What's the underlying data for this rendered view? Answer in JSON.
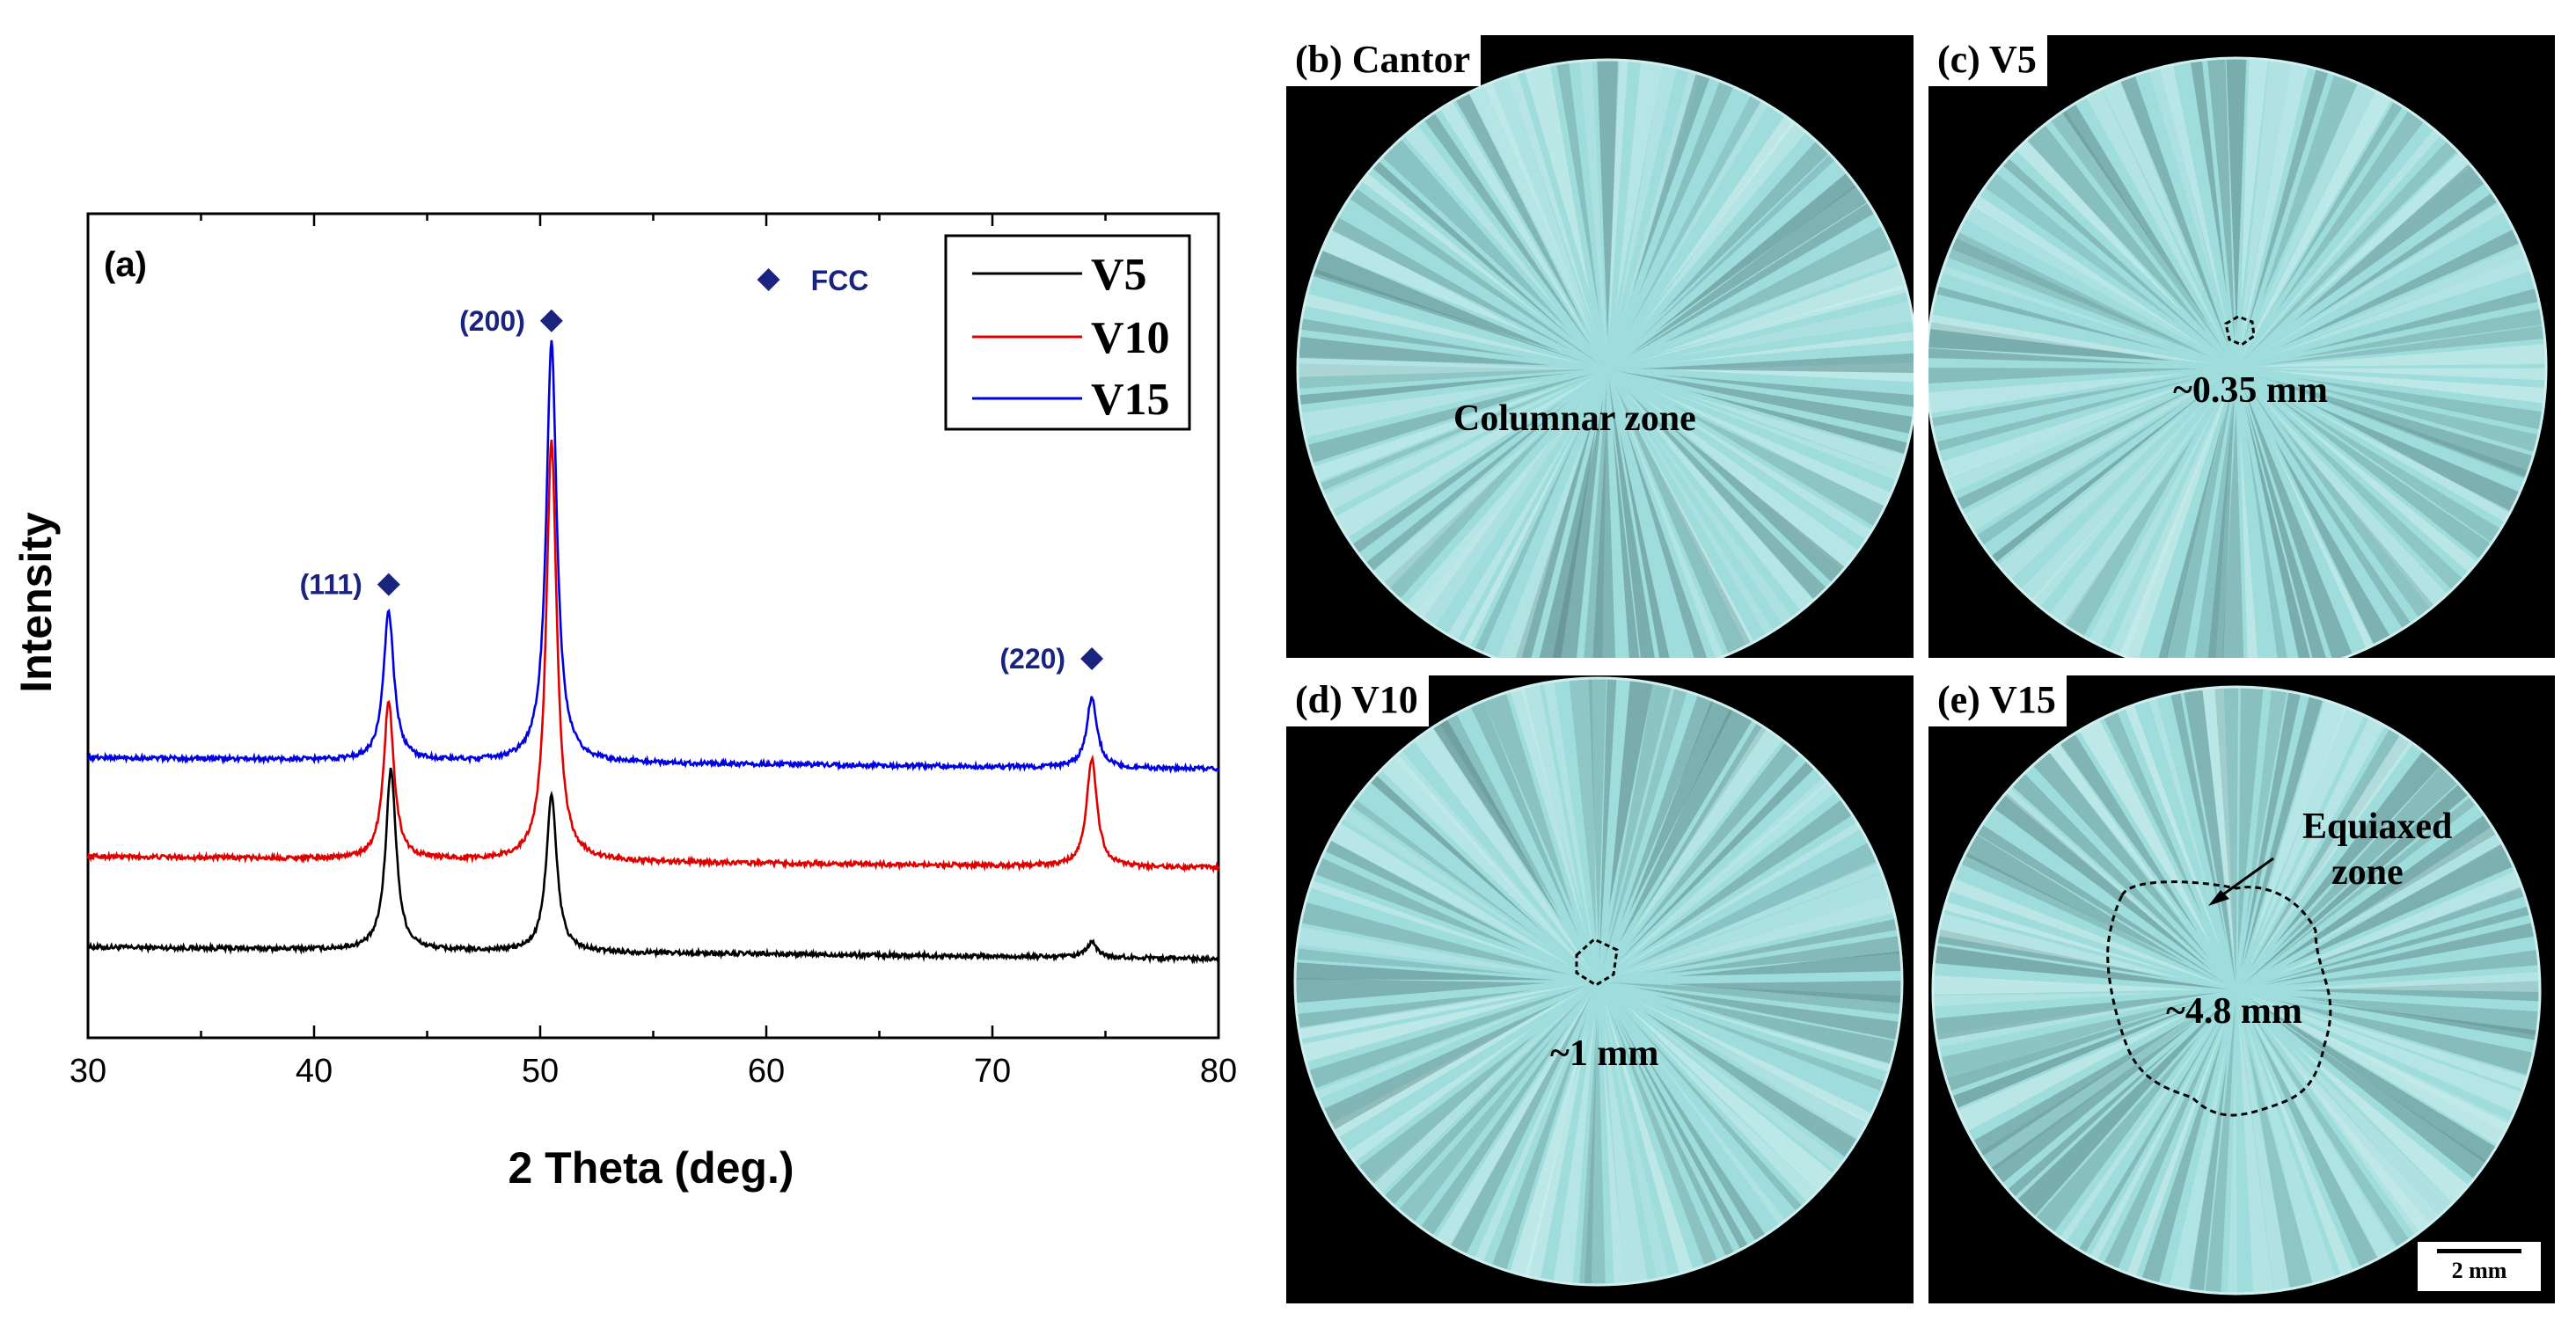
{
  "chart_data": {
    "type": "line",
    "panel_label": "(a)",
    "xlabel": "2 Theta (deg.)",
    "ylabel": "Intensity",
    "xlim": [
      30,
      80
    ],
    "ylim": [
      0,
      100
    ],
    "xticks": [
      30,
      40,
      50,
      60,
      70,
      80
    ],
    "series": [
      {
        "name": "V5",
        "color": "#000000",
        "baseline": 11,
        "peaks": [
          [
            43.4,
            22
          ],
          [
            50.5,
            19
          ],
          [
            74.4,
            1.8
          ]
        ]
      },
      {
        "name": "V10",
        "color": "#e00000",
        "baseline": 22,
        "peaks": [
          [
            43.3,
            19
          ],
          [
            50.5,
            51
          ],
          [
            74.4,
            13
          ]
        ]
      },
      {
        "name": "V15",
        "color": "#0000e0",
        "baseline": 34,
        "peaks": [
          [
            43.3,
            18
          ],
          [
            50.5,
            51
          ],
          [
            74.4,
            8.5
          ]
        ]
      }
    ],
    "annotations": [
      {
        "text": "(111)",
        "x": 43.3,
        "y": 55
      },
      {
        "text": "(200)",
        "x": 50.5,
        "y": 87
      },
      {
        "text": "(220)",
        "x": 74.4,
        "y": 46
      },
      {
        "text": "FCC",
        "x": 60.1,
        "y": 92
      }
    ]
  },
  "panels": {
    "b": {
      "label": "(b) Cantor",
      "annotation": "Columnar zone"
    },
    "c": {
      "label": "(c) V5",
      "annotation": "~0.35 mm"
    },
    "d": {
      "label": "(d) V10",
      "annotation": "~1 mm"
    },
    "e": {
      "label": "(e) V15",
      "annotation": "~4.8 mm",
      "annotation2_line1": "Equiaxed",
      "annotation2_line2": "zone",
      "scale_bar": "2 mm"
    }
  },
  "colors": {
    "marker": "#1a237e",
    "macro_fill": "#9fdcdc",
    "macro_dark": "#5f8a8a"
  }
}
